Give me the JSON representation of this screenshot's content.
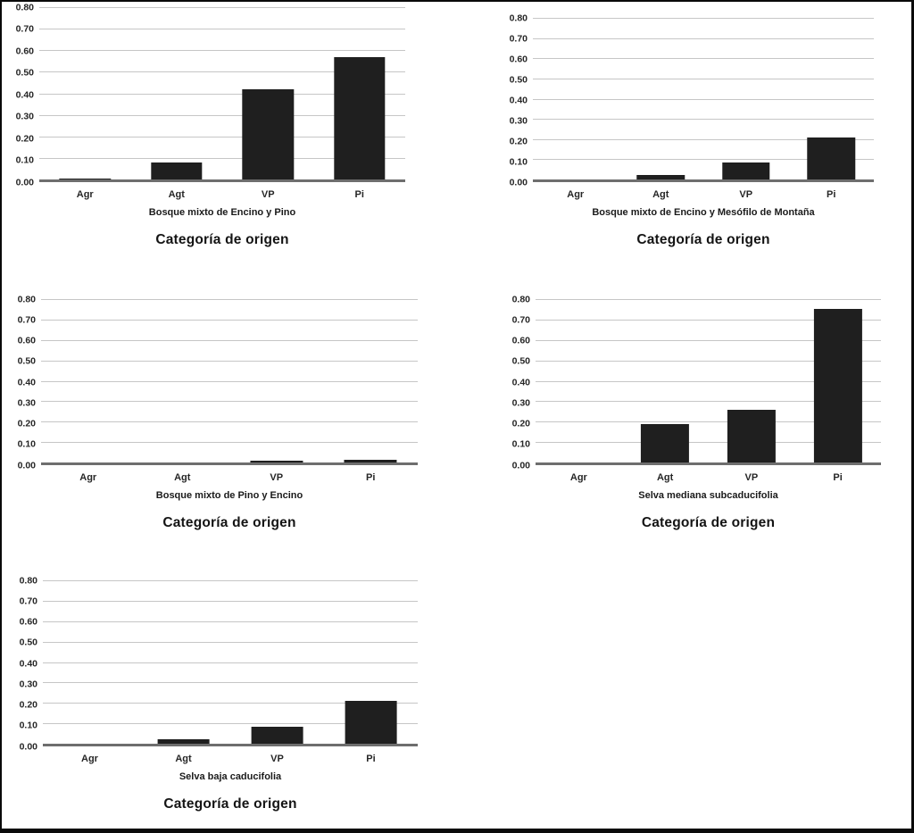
{
  "figure": {
    "background": "#ffffff",
    "border_color": "#0a0a0a",
    "bar_color": "#1f1f1f",
    "gridline_color": "#c6c6c6",
    "axis_line_color": "#6e6e6e"
  },
  "chart_data": [
    {
      "type": "bar",
      "title": "Bosque mixto de Encino y Pino",
      "xlabel": "Categoría de origen",
      "categories": [
        "Agr",
        "Agt",
        "VP",
        "Pi"
      ],
      "values": [
        0.005,
        0.08,
        0.42,
        0.57
      ],
      "ylim": [
        0,
        0.8
      ],
      "yticks": [
        0.0,
        0.1,
        0.2,
        0.3,
        0.4,
        0.5,
        0.6,
        0.7,
        0.8
      ],
      "yticklabels": [
        "0.00",
        "0.10",
        "0.20",
        "0.30",
        "0.40",
        "0.50",
        "0.60",
        "0.70",
        "0.80"
      ],
      "grid": true,
      "legend": false,
      "bar_color": "#1f1f1f"
    },
    {
      "type": "bar",
      "title": "Bosque mixto de Encino y Mesófilo de Montaña",
      "xlabel": "Categoría de origen",
      "categories": [
        "Agr",
        "Agt",
        "VP",
        "Pi"
      ],
      "values": [
        0.0,
        0.02,
        0.085,
        0.21
      ],
      "ylim": [
        0,
        0.8
      ],
      "yticks": [
        0.0,
        0.1,
        0.2,
        0.3,
        0.4,
        0.5,
        0.6,
        0.7,
        0.8
      ],
      "yticklabels": [
        "0.00",
        "0.10",
        "0.20",
        "0.30",
        "0.40",
        "0.50",
        "0.60",
        "0.70",
        "0.80"
      ],
      "grid": true,
      "legend": false,
      "bar_color": "#1f1f1f"
    },
    {
      "type": "bar",
      "title": "Bosque mixto de Pino y Encino",
      "xlabel": "Categoría de origen",
      "categories": [
        "Agr",
        "Agt",
        "VP",
        "Pi"
      ],
      "values": [
        0.0,
        0.0,
        0.01,
        0.013
      ],
      "ylim": [
        0,
        0.8
      ],
      "yticks": [
        0.0,
        0.1,
        0.2,
        0.3,
        0.4,
        0.5,
        0.6,
        0.7,
        0.8
      ],
      "yticklabels": [
        "0.00",
        "0.10",
        "0.20",
        "0.30",
        "0.40",
        "0.50",
        "0.60",
        "0.70",
        "0.80"
      ],
      "grid": true,
      "legend": false,
      "bar_color": "#1f1f1f"
    },
    {
      "type": "bar",
      "title": "Selva mediana subcaducifolia",
      "xlabel": "Categoría de origen",
      "categories": [
        "Agr",
        "Agt",
        "VP",
        "Pi"
      ],
      "values": [
        0.0,
        0.19,
        0.26,
        0.75
      ],
      "ylim": [
        0,
        0.8
      ],
      "yticks": [
        0.0,
        0.1,
        0.2,
        0.3,
        0.4,
        0.5,
        0.6,
        0.7,
        0.8
      ],
      "yticklabels": [
        "0.00",
        "0.10",
        "0.20",
        "0.30",
        "0.40",
        "0.50",
        "0.60",
        "0.70",
        "0.80"
      ],
      "grid": true,
      "legend": false,
      "bar_color": "#1f1f1f"
    },
    {
      "type": "bar",
      "title": "Selva baja caducifolia",
      "xlabel": "Categoría de origen",
      "categories": [
        "Agr",
        "Agt",
        "VP",
        "Pi"
      ],
      "values": [
        0.0,
        0.02,
        0.085,
        0.21
      ],
      "ylim": [
        0,
        0.8
      ],
      "yticks": [
        0.0,
        0.1,
        0.2,
        0.3,
        0.4,
        0.5,
        0.6,
        0.7,
        0.8
      ],
      "yticklabels": [
        "0.00",
        "0.10",
        "0.20",
        "0.30",
        "0.40",
        "0.50",
        "0.60",
        "0.70",
        "0.80"
      ],
      "grid": true,
      "legend": false,
      "bar_color": "#1f1f1f"
    }
  ]
}
